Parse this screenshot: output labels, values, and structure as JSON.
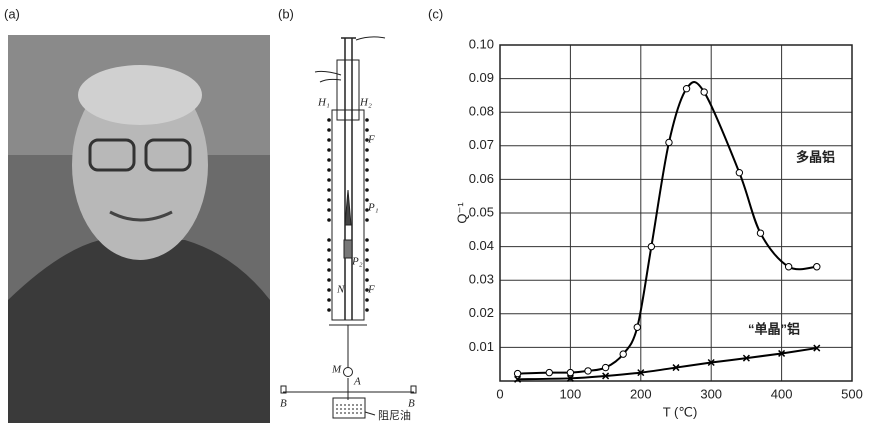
{
  "panel_labels": [
    "(a)",
    "(b)",
    "(c)"
  ],
  "diagram": {
    "labels": [
      "H₁",
      "H₂",
      "F",
      "P₁",
      "P₂",
      "N",
      "F",
      "M",
      "A",
      "B",
      "B",
      "阻尼油"
    ]
  },
  "chart_data": {
    "type": "line",
    "x_label": "T (℃)",
    "y_label": "Q⁻¹",
    "xlim": [
      0,
      500
    ],
    "xticks": [
      0,
      100,
      200,
      300,
      400,
      500
    ],
    "ylim": [
      0,
      0.1
    ],
    "yticks": [
      0.01,
      0.02,
      0.03,
      0.04,
      0.05,
      0.06,
      0.07,
      0.08,
      0.09,
      {
        "value": 0.1,
        "label": "0.10"
      }
    ],
    "grid": true,
    "series": [
      {
        "name": "多晶铝",
        "marker": "circle",
        "color": "#000000",
        "x": [
          25,
          70,
          100,
          125,
          150,
          175,
          195,
          215,
          240,
          265,
          290,
          340,
          370,
          410,
          450
        ],
        "values": [
          0.0022,
          0.0025,
          0.0025,
          0.003,
          0.004,
          0.008,
          0.016,
          0.04,
          0.071,
          0.087,
          0.086,
          0.062,
          0.044,
          0.034,
          0.034
        ]
      },
      {
        "name": "“单晶”铝",
        "marker": "cross",
        "color": "#000000",
        "x": [
          25,
          100,
          150,
          200,
          250,
          300,
          350,
          400,
          450
        ],
        "values": [
          0.0005,
          0.0008,
          0.0015,
          0.0025,
          0.004,
          0.0055,
          0.0068,
          0.0082,
          0.0098
        ]
      }
    ]
  }
}
